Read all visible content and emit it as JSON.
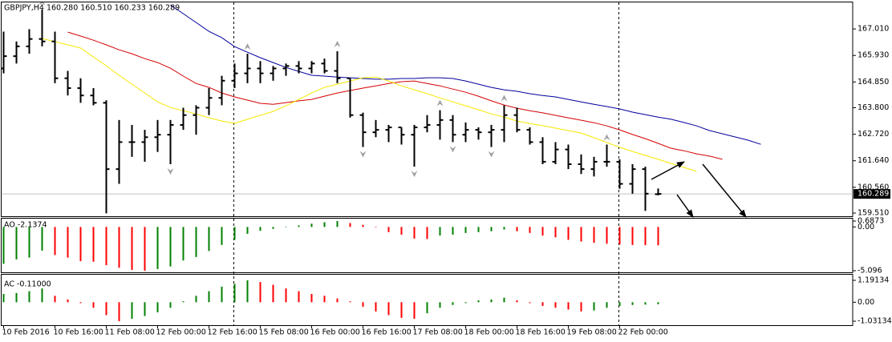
{
  "chart_data": [
    {
      "type": "ohlc",
      "title": "GBPJPY,H4 160.280 160.510 160.233 160.289",
      "categories": [
        "10 Feb 2016",
        null,
        null,
        null,
        "10 Feb 16:00",
        null,
        null,
        null,
        "11 Feb 08:00",
        null,
        null,
        null,
        "12 Feb 00:00",
        null,
        null,
        null,
        "12 Feb 16:00",
        null,
        null,
        null,
        "15 Feb 08:00",
        null,
        null,
        null,
        "16 Feb 00:00",
        null,
        null,
        null,
        "16 Feb 16:00",
        null,
        null,
        null,
        "17 Feb 08:00",
        null,
        null,
        null,
        "18 Feb 00:00",
        null,
        null,
        null,
        "18 Feb 16:00",
        null,
        null,
        null,
        "19 Feb 08:00",
        null,
        null,
        null,
        "22 Feb 00:00",
        null,
        null,
        null
      ],
      "open": [
        165.4,
        165.9,
        166.3,
        166.6,
        166.5,
        165.0,
        164.6,
        164.3,
        164.0,
        161.3,
        162.4,
        162.4,
        162.6,
        162.7,
        163.1,
        163.5,
        163.8,
        164.2,
        164.9,
        165.2,
        165.4,
        165.2,
        165.4,
        165.5,
        165.4,
        165.6,
        165.3,
        165.0,
        163.5,
        162.8,
        162.9,
        163.0,
        162.7,
        163.0,
        163.1,
        163.3,
        162.7,
        162.9,
        162.8,
        162.9,
        163.5,
        162.9,
        162.4,
        161.6,
        162.1,
        161.5,
        161.3,
        161.6,
        161.6,
        160.7,
        161.3,
        160.28
      ],
      "high": [
        166.9,
        166.5,
        167.0,
        167.8,
        166.9,
        165.3,
        165.0,
        164.6,
        164.1,
        163.3,
        163.1,
        162.9,
        163.3,
        163.3,
        163.8,
        163.9,
        164.6,
        165.1,
        165.6,
        166.0,
        165.7,
        165.5,
        165.6,
        165.7,
        165.7,
        165.8,
        166.1,
        165.0,
        163.6,
        163.3,
        163.1,
        163.0,
        163.1,
        163.5,
        163.7,
        163.5,
        163.2,
        163.0,
        163.1,
        163.9,
        163.8,
        163.0,
        162.6,
        162.4,
        162.3,
        161.9,
        161.8,
        162.3,
        161.7,
        161.5,
        161.4,
        160.51
      ],
      "low": [
        165.2,
        165.6,
        166.0,
        166.3,
        164.8,
        164.3,
        164.0,
        163.9,
        159.5,
        160.7,
        161.8,
        161.6,
        162.0,
        161.5,
        162.9,
        162.7,
        163.5,
        163.9,
        164.6,
        164.8,
        164.8,
        164.9,
        165.1,
        165.2,
        165.2,
        165.2,
        164.8,
        163.4,
        162.2,
        162.6,
        162.4,
        162.3,
        161.4,
        162.8,
        162.5,
        162.4,
        162.4,
        162.5,
        162.2,
        162.4,
        162.8,
        162.3,
        161.5,
        161.5,
        161.3,
        161.1,
        161.0,
        161.4,
        160.5,
        160.3,
        159.6,
        160.233
      ],
      "close": [
        165.9,
        166.3,
        166.6,
        166.5,
        165.0,
        164.6,
        164.3,
        164.0,
        161.3,
        162.4,
        162.4,
        162.6,
        162.7,
        163.1,
        163.5,
        163.8,
        164.2,
        164.9,
        165.2,
        165.4,
        165.2,
        165.4,
        165.5,
        165.4,
        165.6,
        165.3,
        165.0,
        163.5,
        162.8,
        162.9,
        163.0,
        162.7,
        163.0,
        163.1,
        163.3,
        162.7,
        162.9,
        162.8,
        162.9,
        163.5,
        162.9,
        162.4,
        161.6,
        162.1,
        161.5,
        161.3,
        161.6,
        161.6,
        160.7,
        161.3,
        160.3,
        160.289
      ],
      "color": "#000000",
      "lines": [
        {
          "color": "#00009c",
          "shift": 8,
          "values": [
            null,
            null,
            null,
            null,
            null,
            167.99,
            167.63,
            167.27,
            166.91,
            166.65,
            166.29,
            166.06,
            165.84,
            165.64,
            165.44,
            165.28,
            165.12,
            165.09,
            165.05,
            165.02,
            164.99,
            164.96,
            164.96,
            164.99,
            164.99,
            165.02,
            165.02,
            164.99,
            164.89,
            164.76,
            164.63,
            164.53,
            164.47,
            164.37,
            164.3,
            164.24,
            164.14,
            164.04,
            163.94,
            163.85,
            163.75,
            163.62,
            163.52,
            163.42,
            163.33,
            163.2,
            163.06,
            162.87,
            162.74,
            162.61,
            162.48,
            162.31
          ]
        },
        {
          "color": "#d40000",
          "shift": 5,
          "values": [
            166.88,
            166.72,
            166.55,
            166.36,
            166.16,
            166.0,
            165.8,
            165.64,
            165.41,
            165.09,
            164.79,
            164.63,
            164.4,
            164.24,
            164.11,
            163.98,
            163.94,
            164.01,
            164.08,
            164.14,
            164.27,
            164.4,
            164.5,
            164.6,
            164.69,
            164.79,
            164.86,
            164.89,
            164.79,
            164.69,
            164.56,
            164.43,
            164.27,
            164.08,
            163.91,
            163.78,
            163.68,
            163.59,
            163.49,
            163.39,
            163.29,
            163.19,
            163.06,
            162.9,
            162.71,
            162.54,
            162.35,
            162.15,
            162.05,
            161.92,
            161.83,
            161.7
          ]
        },
        {
          "color": "#f5e800",
          "shift": 3,
          "values": [
            166.62,
            166.49,
            166.36,
            166.23,
            165.87,
            165.51,
            165.12,
            164.76,
            164.4,
            164.04,
            163.81,
            163.68,
            163.55,
            163.39,
            163.26,
            163.16,
            163.33,
            163.49,
            163.65,
            163.88,
            164.14,
            164.4,
            164.63,
            164.76,
            164.89,
            165.02,
            165.05,
            164.89,
            164.69,
            164.53,
            164.37,
            164.2,
            164.04,
            163.88,
            163.72,
            163.55,
            163.42,
            163.26,
            163.16,
            163.07,
            162.97,
            162.87,
            162.77,
            162.58,
            162.38,
            162.19,
            162.02,
            161.86,
            161.7,
            161.53,
            161.37,
            161.21
          ]
        }
      ],
      "fractal_up": [
        3,
        19,
        26,
        34,
        39,
        47
      ],
      "fractal_down": [
        8,
        13,
        28,
        32,
        35,
        38
      ],
      "fractal_color": "#a0a0a0",
      "current_price": 160.289,
      "ylim": [
        159.38,
        168.09
      ],
      "yticks": [
        {
          "value": 167.01,
          "label": "167.010"
        },
        {
          "value": 165.93,
          "label": "165.930"
        },
        {
          "value": 164.85,
          "label": "164.850"
        },
        {
          "value": 163.8,
          "label": "163.800"
        },
        {
          "value": 162.72,
          "label": "162.720"
        },
        {
          "value": 161.64,
          "label": "161.640"
        },
        {
          "value": 160.56,
          "label": "160.560"
        },
        {
          "value": 159.51,
          "label": "159.510"
        }
      ]
    },
    {
      "type": "bar",
      "title": "AO -2.1374",
      "values": [
        -4.29,
        -3.78,
        -3.57,
        -2.76,
        -3.27,
        -3.57,
        -3.98,
        -4.05,
        -4.45,
        -4.75,
        -5.0,
        -5.096,
        -4.9,
        -4.6,
        -3.9,
        -3.5,
        -2.8,
        -2.1,
        -1.5,
        -0.8,
        -0.45,
        -0.22,
        -0.05,
        0.18,
        0.38,
        0.55,
        0.6873,
        0.45,
        0.25,
        -0.05,
        -0.6,
        -0.9,
        -1.35,
        -1.4,
        -1.0,
        -0.9,
        -0.7,
        -0.6,
        -0.5,
        -0.3,
        -0.5,
        -0.7,
        -1.0,
        -1.2,
        -1.5,
        -1.7,
        -1.85,
        -1.95,
        -2.05,
        -2.1,
        -2.12,
        -2.1374
      ],
      "up_color": "#008000",
      "down_color": "#ff0000",
      "ylim": [
        -5.096,
        0.6873
      ],
      "yticks": [
        0.6873,
        {
          "value": 0,
          "label": "0.00"
        },
        -5.096
      ]
    },
    {
      "type": "bar",
      "title": "AC -0.11000",
      "values": [
        0.45,
        0.5,
        0.6,
        0.75,
        0.35,
        0.15,
        -0.05,
        -0.3,
        -0.7,
        -1.03134,
        -0.9,
        -0.75,
        -0.55,
        -0.3,
        0.05,
        0.35,
        0.6,
        0.85,
        1.0,
        1.19134,
        1.1,
        0.95,
        0.75,
        0.6,
        0.45,
        0.35,
        0.2,
        0.05,
        -0.25,
        -0.5,
        -0.7,
        -0.85,
        -0.9,
        -0.6,
        -0.3,
        -0.15,
        -0.05,
        0.1,
        0.15,
        0.25,
        0.1,
        -0.05,
        -0.2,
        -0.3,
        -0.4,
        -0.5,
        -0.45,
        -0.3,
        -0.2,
        -0.15,
        -0.13,
        -0.11
      ],
      "up_color": "#008000",
      "down_color": "#ff0000",
      "ylim": [
        -1.03134,
        1.19134
      ],
      "yticks": [
        1.19134,
        {
          "value": 0,
          "label": "0.00"
        },
        -1.03134
      ]
    }
  ]
}
